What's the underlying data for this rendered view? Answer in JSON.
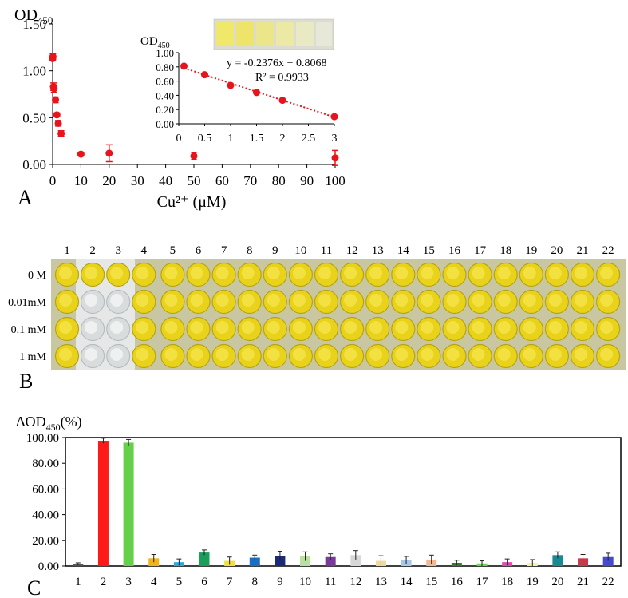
{
  "panels": {
    "a": "A",
    "b": "B",
    "c": "C"
  },
  "panel_a": {
    "ylabel_main": "OD",
    "ylabel_sub": "450",
    "xlabel": "Cu²⁺ (μM)",
    "inset_ylabel_main": "OD",
    "inset_ylabel_sub": "450",
    "equation": "y = -0.2376x + 0.8068",
    "r2": "R² = 0.9933",
    "colors": {
      "points": "#e8141c",
      "fit": "#e8141c"
    }
  },
  "panel_b": {
    "columns": [
      "1",
      "2",
      "3",
      "4",
      "5",
      "6",
      "7",
      "8",
      "9",
      "10",
      "11",
      "12",
      "13",
      "14",
      "15",
      "16",
      "17",
      "18",
      "19",
      "20",
      "21",
      "22"
    ],
    "rows": [
      "0 M",
      "0.01mM",
      "0.1 mM",
      "1 mM"
    ],
    "colors": {
      "well_yellow": "#e8d21a",
      "well_clear": "#d9dcdc",
      "tray": "#c8c8a8"
    }
  },
  "panel_c": {
    "ylabel_main": "ΔOD",
    "ylabel_sub": "450",
    "ylabel_suffix": "(%)"
  },
  "chart_data": [
    {
      "id": "A-main",
      "type": "scatter",
      "xlabel": "Cu²⁺ (μM)",
      "ylabel": "OD450",
      "xlim": [
        0,
        100
      ],
      "ylim": [
        0,
        1.5
      ],
      "xticks": [
        0,
        10,
        20,
        30,
        40,
        50,
        60,
        70,
        80,
        90,
        100
      ],
      "yticks": [
        0,
        0.5,
        1.0,
        1.5
      ],
      "ytick_labels": [
        "0.00",
        "0.50",
        "1.00",
        "1.50"
      ],
      "series": [
        {
          "x": [
            0,
            0.1,
            0.3,
            0.5,
            1,
            1.5,
            2,
            3,
            10,
            20,
            50,
            100
          ],
          "y": [
            1.13,
            1.15,
            0.83,
            0.81,
            0.69,
            0.53,
            0.44,
            0.33,
            0.11,
            0.12,
            0.09,
            0.07
          ],
          "err": [
            0.02,
            0.03,
            0.04,
            0.04,
            0.03,
            0.02,
            0.03,
            0.03,
            0.01,
            0.09,
            0.04,
            0.08
          ]
        }
      ],
      "grid": false
    },
    {
      "id": "A-inset",
      "type": "scatter",
      "ylabel": "OD450",
      "xlim": [
        0,
        3
      ],
      "ylim": [
        0,
        1.0
      ],
      "xticks": [
        0,
        0.5,
        1,
        1.5,
        2,
        2.5,
        3
      ],
      "yticks": [
        0,
        0.1,
        0.2,
        0.3,
        0.4,
        0.5,
        0.6,
        0.7,
        0.8,
        0.9,
        1.0
      ],
      "ytick_labels": [
        "0.00",
        "0.10",
        "0.20",
        "0.30",
        "0.40",
        "0.50",
        "0.60",
        "0.70",
        "0.80",
        "0.90",
        "1.00"
      ],
      "series": [
        {
          "x": [
            0.1,
            0.5,
            1,
            1.5,
            2,
            3
          ],
          "y": [
            0.81,
            0.69,
            0.54,
            0.44,
            0.33,
            0.1
          ],
          "err": [
            0.04,
            0.02,
            0.02,
            0.01,
            0.02,
            0.01
          ]
        }
      ],
      "fit": {
        "slope": -0.2376,
        "intercept": 0.8068,
        "style": "dotted"
      },
      "grid": false
    },
    {
      "id": "C",
      "type": "bar",
      "ylabel": "ΔOD450(%)",
      "categories": [
        "1",
        "2",
        "3",
        "4",
        "5",
        "6",
        "7",
        "8",
        "9",
        "10",
        "11",
        "12",
        "13",
        "14",
        "15",
        "16",
        "17",
        "18",
        "19",
        "20",
        "21",
        "22"
      ],
      "values": [
        1.5,
        97.5,
        96.0,
        6.0,
        3.0,
        10.5,
        4.0,
        6.5,
        8.0,
        7.5,
        7.0,
        8.5,
        4.0,
        4.5,
        5.0,
        2.5,
        2.0,
        3.0,
        2.5,
        8.5,
        6.0,
        7.0
      ],
      "errors": [
        1.0,
        2.0,
        2.5,
        3.0,
        2.5,
        2.0,
        3.0,
        2.0,
        3.5,
        3.5,
        2.5,
        3.5,
        4.0,
        3.0,
        3.5,
        2.0,
        2.0,
        2.5,
        2.5,
        2.5,
        3.0,
        3.0
      ],
      "bar_colors": [
        "#555555",
        "#ff1a1a",
        "#66d04a",
        "#f2b21c",
        "#2ba8e0",
        "#1a9e5a",
        "#f0e23a",
        "#1a6cc4",
        "#1a2a78",
        "#b8e0a0",
        "#7a3a9a",
        "#d8d8d8",
        "#f2d8a0",
        "#a8c8e8",
        "#f4b890",
        "#3a7a30",
        "#6ad858",
        "#e04ab0",
        "#f6f0a8",
        "#1a8a92",
        "#c83a4a",
        "#4848d0"
      ],
      "ylim": [
        0,
        100
      ],
      "yticks": [
        0,
        20,
        40,
        60,
        80,
        100
      ],
      "ytick_labels": [
        "0.00",
        "20.00",
        "40.00",
        "60.00",
        "80.00",
        "100.00"
      ],
      "grid": false
    }
  ]
}
